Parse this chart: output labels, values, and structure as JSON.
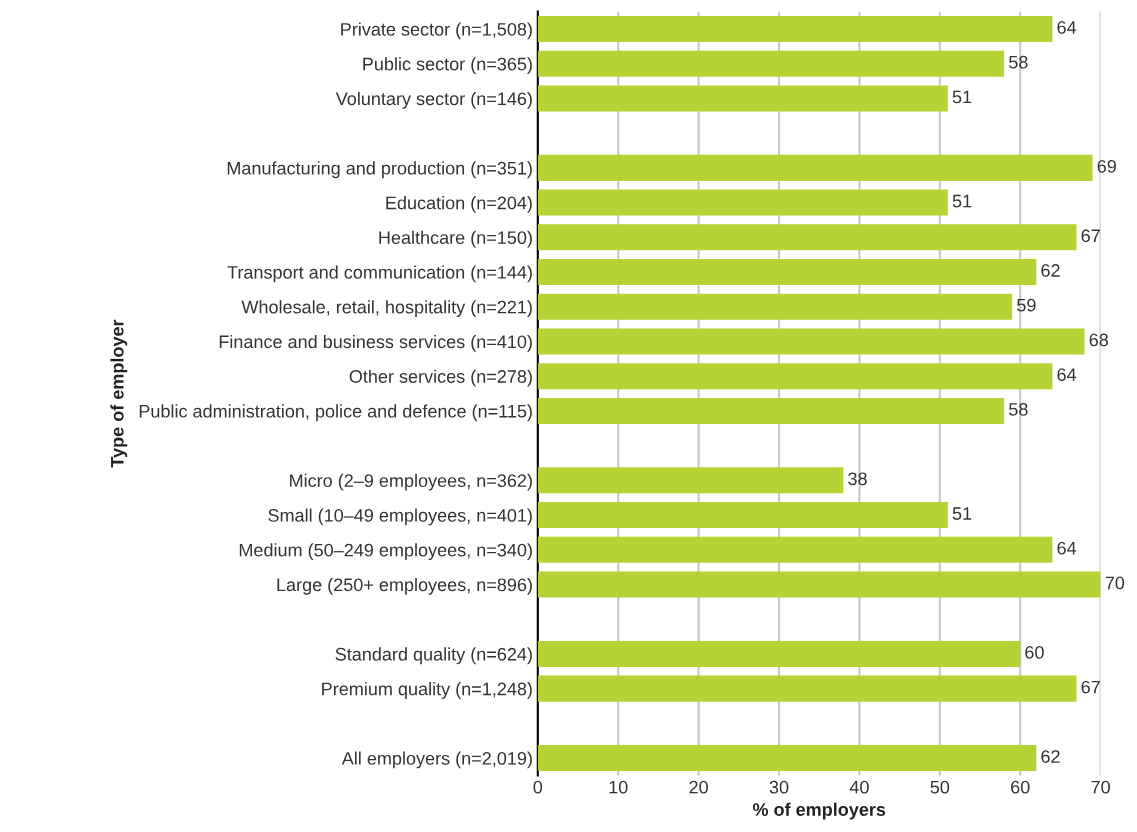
{
  "chart_data": {
    "type": "bar",
    "orientation": "horizontal",
    "xlabel": "% of employers",
    "ylabel": "Type of employer",
    "categories": [
      "Private sector (n=1,508)",
      "Public sector (n=365)",
      "Voluntary sector (n=146)",
      null,
      "Manufacturing and production (n=351)",
      "Education (n=204)",
      "Healthcare (n=150)",
      "Transport and communication (n=144)",
      "Wholesale, retail, hospitality (n=221)",
      "Finance and business services (n=410)",
      "Other services (n=278)",
      "Public administration, police and defence (n=115)",
      null,
      "Micro (2–9 employees, n=362)",
      "Small (10–49 employees, n=401)",
      "Medium (50–249 employees, n=340)",
      "Large (250+ employees, n=896)",
      null,
      "Standard quality (n=624)",
      "Premium quality (n=1,248)",
      null,
      "All employers (n=2,019)"
    ],
    "values": [
      64,
      58,
      51,
      null,
      69,
      51,
      67,
      62,
      59,
      68,
      64,
      58,
      null,
      38,
      51,
      64,
      70,
      null,
      60,
      67,
      null,
      62
    ],
    "color": "#b5d334",
    "xlim": [
      0,
      70
    ],
    "xticks": [
      0,
      10,
      20,
      30,
      40,
      50,
      60,
      70
    ],
    "grid": "x",
    "data_labels": true
  }
}
